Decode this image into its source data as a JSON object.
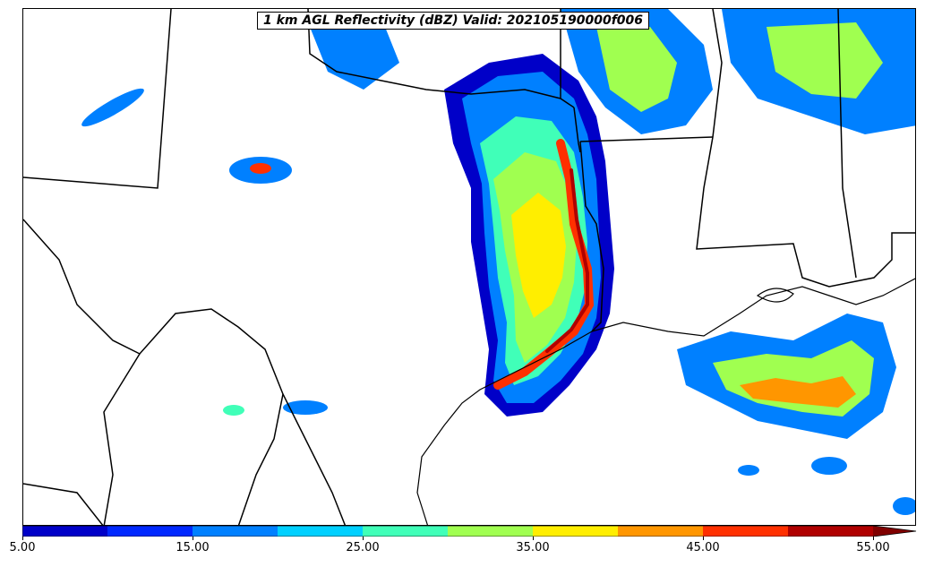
{
  "title": "1 km AGL Reflectivity (dBZ) Valid: 202105190000f006",
  "colorbar": {
    "bins": [
      {
        "from": 5,
        "to": 10,
        "color": "#0000c8"
      },
      {
        "from": 10,
        "to": 15,
        "color": "#0028ff"
      },
      {
        "from": 15,
        "to": 20,
        "color": "#0080ff"
      },
      {
        "from": 20,
        "to": 25,
        "color": "#00d0ff"
      },
      {
        "from": 25,
        "to": 30,
        "color": "#40ffb8"
      },
      {
        "from": 30,
        "to": 35,
        "color": "#a0ff50"
      },
      {
        "from": 35,
        "to": 40,
        "color": "#ffee00"
      },
      {
        "from": 40,
        "to": 45,
        "color": "#ff9600"
      },
      {
        "from": 45,
        "to": 50,
        "color": "#ff3000"
      },
      {
        "from": 50,
        "to": 55,
        "color": "#b00000"
      }
    ],
    "extend_color": "#800000",
    "tick_labels": [
      "5.00",
      "15.00",
      "25.00",
      "35.00",
      "45.00",
      "55.00"
    ]
  }
}
